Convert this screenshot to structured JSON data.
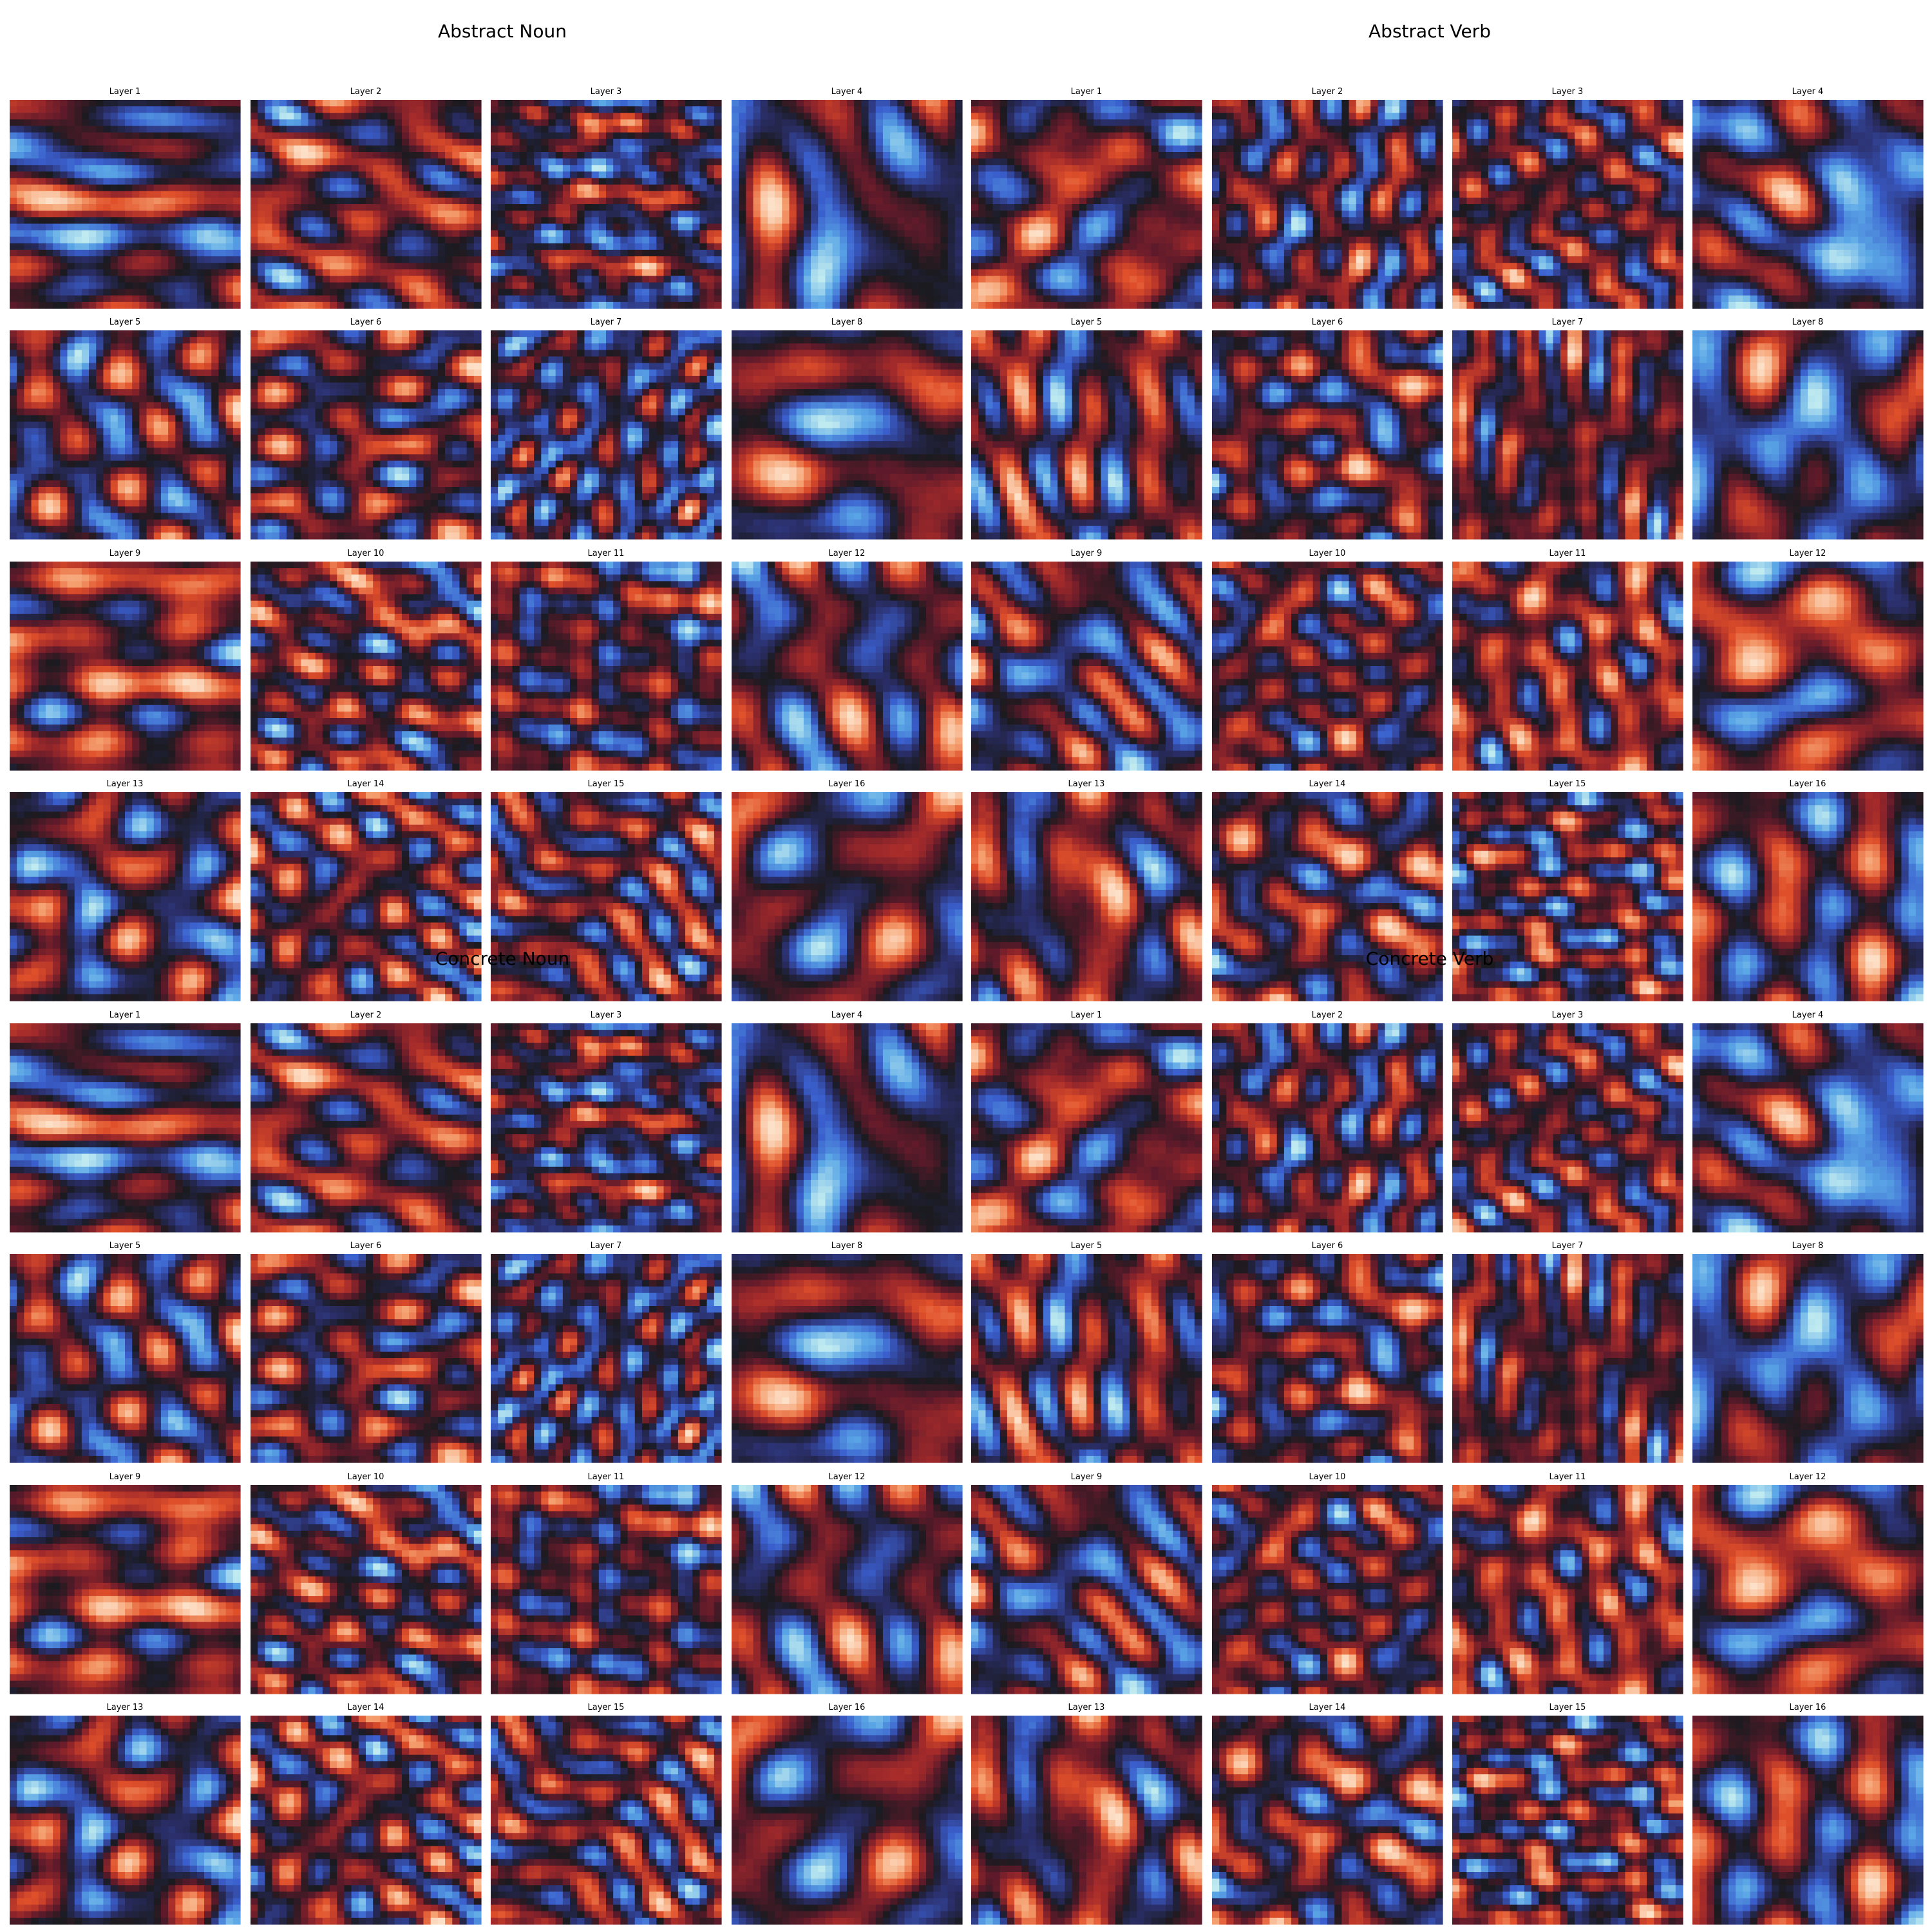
{
  "figure": {
    "background": "#ffffff",
    "colormap": "icefire",
    "colormap_stops": [
      "#bfeaf0",
      "#5aa6e6",
      "#3a5fcd",
      "#2b2f6b",
      "#1a1a1f",
      "#5e1a2a",
      "#a32a2a",
      "#e0502a",
      "#f5a070",
      "#fde0c8"
    ],
    "grid_resolution": 32,
    "panels": [
      {
        "title": "Abstract Noun",
        "layers": [
          "Layer 1",
          "Layer 2",
          "Layer 3",
          "Layer 4",
          "Layer 5",
          "Layer 6",
          "Layer 7",
          "Layer 8",
          "Layer 9",
          "Layer 10",
          "Layer 11",
          "Layer 12",
          "Layer 13",
          "Layer 14",
          "Layer 15",
          "Layer 16"
        ]
      },
      {
        "title": "Abstract Verb",
        "layers": [
          "Layer 1",
          "Layer 2",
          "Layer 3",
          "Layer 4",
          "Layer 5",
          "Layer 6",
          "Layer 7",
          "Layer 8",
          "Layer 9",
          "Layer 10",
          "Layer 11",
          "Layer 12",
          "Layer 13",
          "Layer 14",
          "Layer 15",
          "Layer 16"
        ]
      },
      {
        "title": "Concrete Noun",
        "layers": [
          "Layer 1",
          "Layer 2",
          "Layer 3",
          "Layer 4",
          "Layer 5",
          "Layer 6",
          "Layer 7",
          "Layer 8",
          "Layer 9",
          "Layer 10",
          "Layer 11",
          "Layer 12",
          "Layer 13",
          "Layer 14",
          "Layer 15",
          "Layer 16"
        ]
      },
      {
        "title": "Concrete Verb",
        "layers": [
          "Layer 1",
          "Layer 2",
          "Layer 3",
          "Layer 4",
          "Layer 5",
          "Layer 6",
          "Layer 7",
          "Layer 8",
          "Layer 9",
          "Layer 10",
          "Layer 11",
          "Layer 12",
          "Layer 13",
          "Layer 14",
          "Layer 15",
          "Layer 16"
        ]
      }
    ]
  },
  "chart_data": {
    "type": "heatmap",
    "titles": [
      "Abstract Noun",
      "Abstract Verb",
      "Concrete Noun",
      "Concrete Verb"
    ],
    "subplot_titles": [
      "Layer 1",
      "Layer 2",
      "Layer 3",
      "Layer 4",
      "Layer 5",
      "Layer 6",
      "Layer 7",
      "Layer 8",
      "Layer 9",
      "Layer 10",
      "Layer 11",
      "Layer 12",
      "Layer 13",
      "Layer 14",
      "Layer 15",
      "Layer 16"
    ],
    "layout": "2x2 panels of 4x4 heatmaps",
    "axes": "off",
    "colorbar": "none",
    "diverging_colormap": "icefire"
  }
}
